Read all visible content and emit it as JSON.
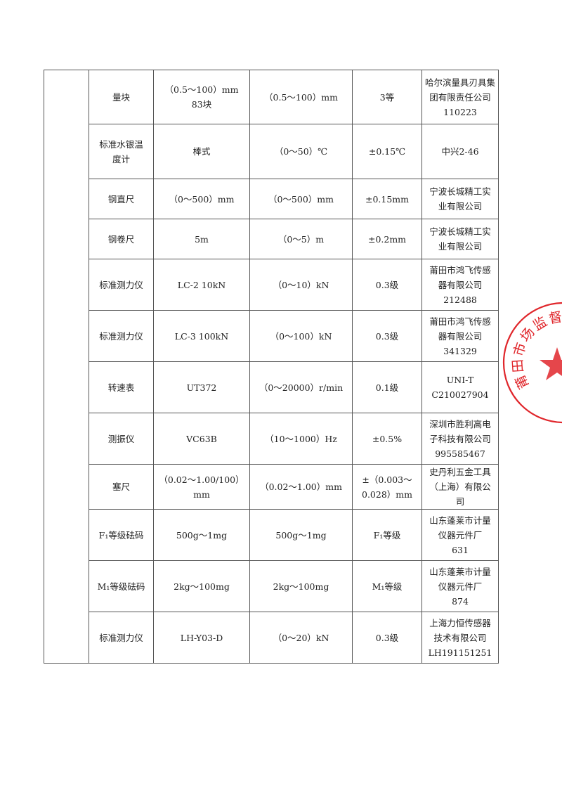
{
  "rows": [
    {
      "name": "量块",
      "spec": "（0.5～100）mm\n83块",
      "range": "（0.5～100）mm",
      "accuracy": "3等",
      "maker": "哈尔滨量具刃具集团有限责任公司\n110223"
    },
    {
      "name": "标准水银温\n度计",
      "spec": "棒式",
      "range": "（0～50）℃",
      "accuracy": "±0.15℃",
      "maker": "中兴2-46"
    },
    {
      "name": "钢直尺",
      "spec": "（0～500）mm",
      "range": "（0～500）mm",
      "accuracy": "±0.15mm",
      "maker": "宁波长城精工实\n业有限公司"
    },
    {
      "name": "钢卷尺",
      "spec": "5m",
      "range": "（0～5）m",
      "accuracy": "±0.2mm",
      "maker": "宁波长城精工实\n业有限公司"
    },
    {
      "name": "标准测力仪",
      "spec": "LC-2 10kN",
      "range": "（0～10）kN",
      "accuracy": "0.3级",
      "maker": "莆田市鸿飞传感\n器有限公司\n212488"
    },
    {
      "name": "标准测力仪",
      "spec": "LC-3 100kN",
      "range": "（0～100）kN",
      "accuracy": "0.3级",
      "maker": "莆田市鸿飞传感\n器有限公司\n341329"
    },
    {
      "name": "转速表",
      "spec": "UT372",
      "range": "（0～20000）r/min",
      "accuracy": "0.1级",
      "maker": "UNI-T\nC210027904"
    },
    {
      "name": "测振仪",
      "spec": "VC63B",
      "range": "（10～1000）Hz",
      "accuracy": "±0.5%",
      "maker": "深圳市胜利高电\n子科技有限公司\n995585467"
    },
    {
      "name": "塞尺",
      "spec": "（0.02～1.00/100）\nmm",
      "range": "（0.02～1.00）mm",
      "accuracy": "±（0.003～\n0.028）mm",
      "maker": "史丹利五金工具\n（上海）有限公\n司"
    },
    {
      "name": "F₁等级砝码",
      "spec": "500g～1mg",
      "range": "500g～1mg",
      "accuracy": "F₁等级",
      "maker": "山东蓬莱市计量\n仪器元件厂\n631"
    },
    {
      "name": "M₁等级砝码",
      "spec": "2kg～100mg",
      "range": "2kg～100mg",
      "accuracy": "M₁等级",
      "maker": "山东蓬莱市计量\n仪器元件厂\n874"
    },
    {
      "name": "标准测力仪",
      "spec": "LH-Y03-D",
      "range": "（0～20）kN",
      "accuracy": "0.3级",
      "maker": "上海力恒传感器\n技术有限公司\nLH191151251"
    }
  ],
  "stamp": {
    "text": "莆田市场监督管",
    "color": "#e0262b"
  }
}
